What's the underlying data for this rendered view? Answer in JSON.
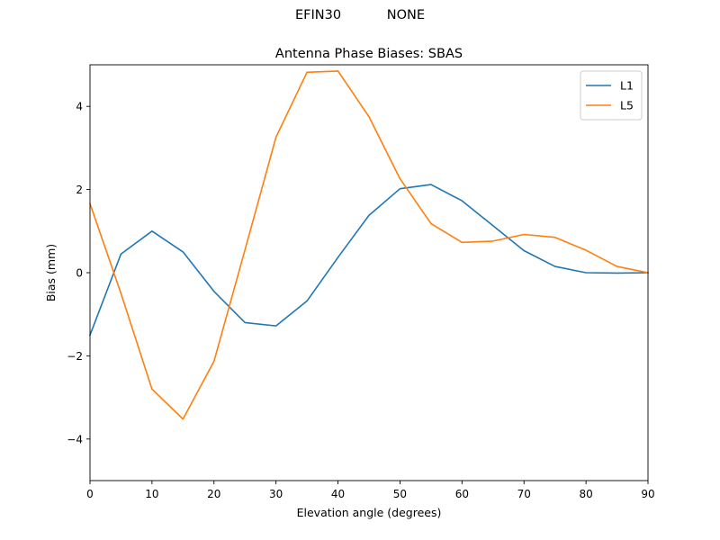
{
  "figure": {
    "suptitle": "EFIN30           NONE"
  },
  "chart_data": {
    "type": "line",
    "title": "Antenna Phase Biases: SBAS",
    "xlabel": "Elevation angle (degrees)",
    "ylabel": "Bias (mm)",
    "xlim": [
      0,
      90
    ],
    "ylim": [
      -5,
      5
    ],
    "xticks": [
      0,
      10,
      20,
      30,
      40,
      50,
      60,
      70,
      80,
      90
    ],
    "yticks": [
      -4,
      -2,
      0,
      2,
      4
    ],
    "grid": false,
    "legend_position": "top-right",
    "x": [
      0,
      5,
      10,
      15,
      20,
      25,
      30,
      35,
      40,
      45,
      50,
      55,
      60,
      65,
      70,
      75,
      80,
      85,
      90
    ],
    "series": [
      {
        "name": "L1",
        "color": "#1f77b4",
        "values": [
          -1.5,
          0.45,
          1.0,
          0.5,
          -0.45,
          -1.2,
          -1.28,
          -0.68,
          0.37,
          1.38,
          2.02,
          2.12,
          1.73,
          1.13,
          0.53,
          0.15,
          0.0,
          -0.01,
          0.0
        ]
      },
      {
        "name": "L5",
        "color": "#ff7f0e",
        "values": [
          1.66,
          -0.5,
          -2.8,
          -3.52,
          -2.13,
          0.55,
          3.26,
          4.82,
          4.85,
          3.75,
          2.26,
          1.18,
          0.73,
          0.76,
          0.92,
          0.85,
          0.54,
          0.15,
          0.0
        ]
      }
    ]
  }
}
